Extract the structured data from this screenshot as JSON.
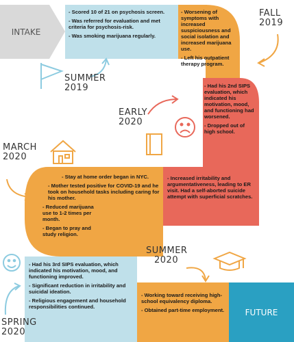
{
  "stages": {
    "intake": "INTAKE",
    "future": "FUTURE"
  },
  "periods": {
    "fall_2019": [
      "FALL",
      "2019"
    ],
    "summer_2019": [
      "SUMMER",
      "2019"
    ],
    "early_2020": [
      "EARLY",
      "2020"
    ],
    "march_2020": [
      "MARCH",
      "2020"
    ],
    "summer_2020": [
      "SUMMER",
      "2020"
    ],
    "spring_2020": [
      "SPRING",
      "2020"
    ]
  },
  "notes": {
    "intake": [
      "- Scored 10 of 21 on psychosis screen.",
      "- Was referred for evaluation and met criteria for psychosis-risk.",
      "- Was smoking marijuana regularly."
    ],
    "fall": [
      "- Worsening of symptoms with increased suspiciousness and social isolation and increased marijuana use.",
      "- Left his outpatient therapy program."
    ],
    "early": [
      "- Had his 2nd SIPS evaluation, which indicated his motivation, mood, and functioning had worsened.",
      "- Dropped out of high school."
    ],
    "march": [
      "- Stay at home order began in NYC.",
      "- Mother tested positive for COVID-19 and he took on household tasks including caring for his mother.",
      "- Reduced marijuana use to 1-2 times per month.",
      "- Began to pray and study religion."
    ],
    "crisis": [
      "- Increased irritability and argumentativeness, leading to ER visit. Had a self-aborted suicide attempt with superficial scratches."
    ],
    "spring": [
      "- Had his 3rd SIPS evaluation, which indicated his motivation, mood, and functioning improved.",
      "- Significant reduction in irritability and suicidal ideation.",
      "- Religious engagement and household responsibilities continued."
    ],
    "summer": [
      "- Working toward receiving high-school equivalency diploma.",
      "- Obtained part-time employment."
    ]
  },
  "colors": {
    "light_blue": "#bfe0ea",
    "orange": "#f0a644",
    "red": "#e8685a",
    "teal": "#2aa0c2",
    "gray": "#d9d9d9",
    "icon_orange": "#f0a644",
    "icon_blue": "#8ccbe0",
    "icon_red": "#e8685a"
  },
  "icons": [
    "flag-icon",
    "book-icon",
    "sad-face-icon",
    "house-icon",
    "happy-face-icon",
    "graduation-cap-icon"
  ]
}
